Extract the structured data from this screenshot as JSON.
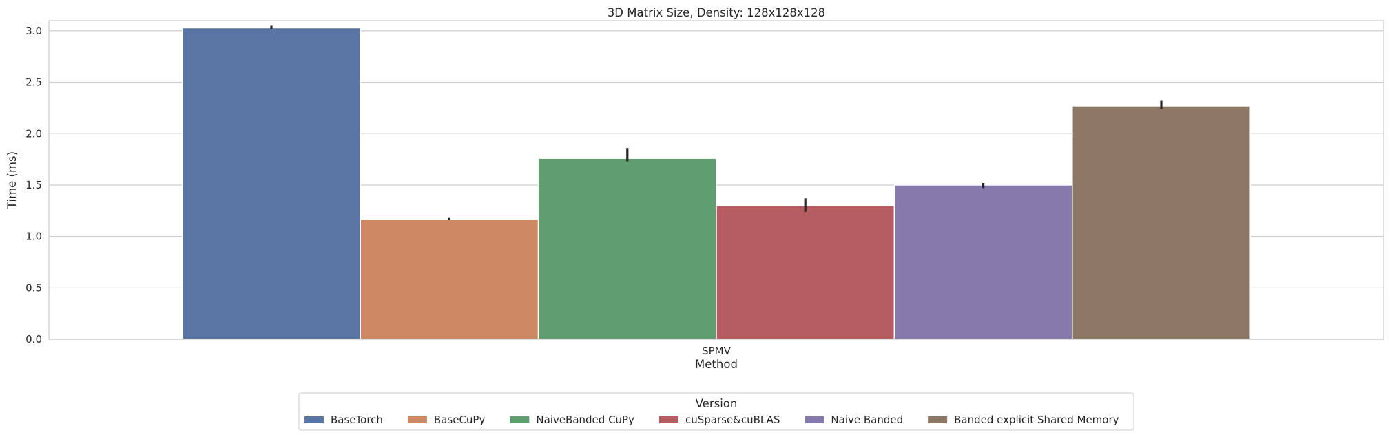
{
  "chart_data": {
    "type": "bar",
    "title": "3D Matrix Size, Density: 128x128x128",
    "xlabel": "Method",
    "ylabel": "Time (ms)",
    "categories": [
      "SPMV"
    ],
    "ylim": [
      0,
      3.1
    ],
    "yticks": [
      "0.0",
      "0.5",
      "1.0",
      "1.5",
      "2.0",
      "2.5",
      "3.0"
    ],
    "grid": "horizontal",
    "legend": {
      "title": "Version",
      "placement": "bottom-center"
    },
    "series": [
      {
        "name": "BaseTorch",
        "values": [
          3.03
        ],
        "error": [
          3.02,
          3.05
        ],
        "color": "#5875a4"
      },
      {
        "name": "BaseCuPy",
        "values": [
          1.17
        ],
        "error": [
          1.16,
          1.18
        ],
        "color": "#cc8963"
      },
      {
        "name": "NaiveBanded CuPy",
        "values": [
          1.76
        ],
        "error": [
          1.73,
          1.86
        ],
        "color": "#5f9e6e"
      },
      {
        "name": "cuSparse&cuBLAS",
        "values": [
          1.3
        ],
        "error": [
          1.24,
          1.37
        ],
        "color": "#b55d60"
      },
      {
        "name": "Naive Banded",
        "values": [
          1.5
        ],
        "error": [
          1.47,
          1.52
        ],
        "color": "#857aab"
      },
      {
        "name": "Banded explicit Shared Memory",
        "values": [
          2.27
        ],
        "error": [
          2.24,
          2.32
        ],
        "color": "#8d7866"
      }
    ]
  }
}
